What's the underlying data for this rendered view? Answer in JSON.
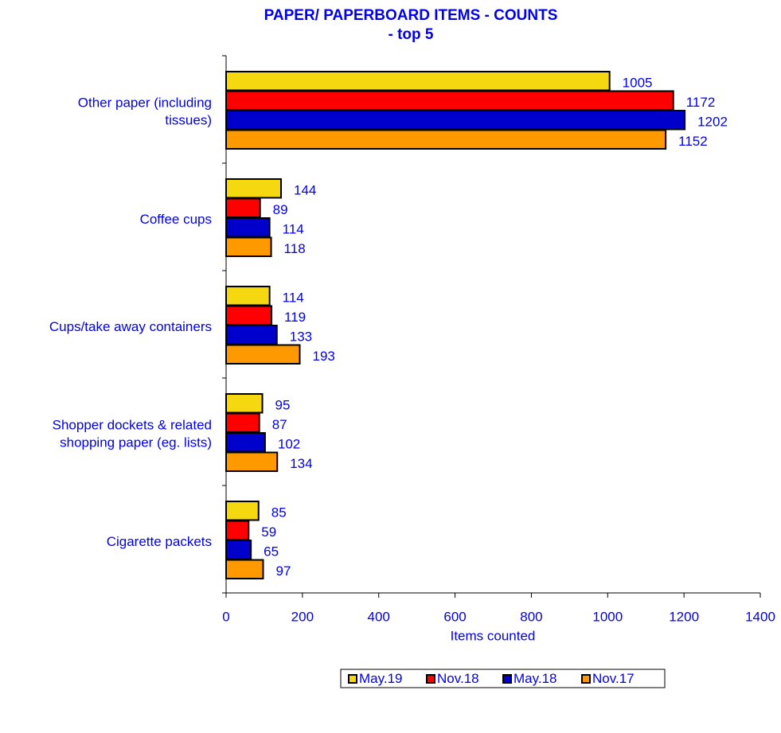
{
  "chart_data": {
    "type": "barh",
    "title": "PAPER/ PAPERBOARD ITEMS - COUNTS\n- top 5",
    "x_label": "Items counted",
    "categories": [
      "Other paper (including\ntissues)",
      "Coffee cups",
      "Cups/take away containers",
      "Shopper dockets & related\nshopping paper (eg. lists)",
      "Cigarette packets"
    ],
    "series": [
      {
        "name": "May.19",
        "color": "#f5d80f",
        "values": [
          1005,
          144,
          114,
          95,
          85
        ]
      },
      {
        "name": "Nov.18",
        "color": "#ff0000",
        "values": [
          1172,
          89,
          119,
          87,
          59
        ]
      },
      {
        "name": "May.18",
        "color": "#0000cc",
        "values": [
          1202,
          114,
          133,
          102,
          65
        ]
      },
      {
        "name": "Nov.17",
        "color": "#ff9900",
        "values": [
          1152,
          118,
          193,
          134,
          97
        ]
      }
    ],
    "xlim": [
      0,
      1400
    ],
    "xticks": [
      0,
      200,
      400,
      600,
      800,
      1000,
      1200,
      1400
    ],
    "legend": "bottom"
  }
}
